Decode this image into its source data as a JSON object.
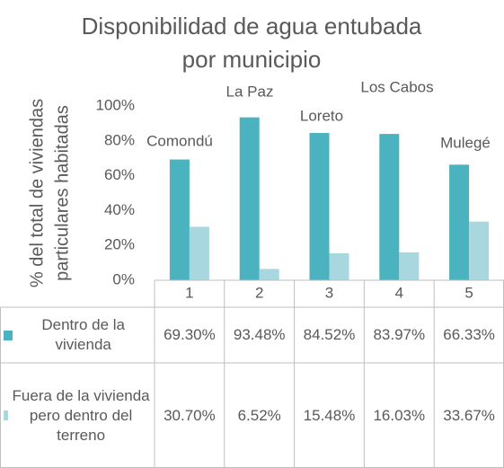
{
  "chart_data": {
    "type": "bar",
    "title": [
      "Disponibilidad de agua entubada",
      "por municipio"
    ],
    "y_label": [
      "% del total de viviendas",
      "particulares habitadas"
    ],
    "categories": [
      "1",
      "2",
      "3",
      "4",
      "5"
    ],
    "annotations": [
      "Comondú",
      "La Paz",
      "Loreto",
      "Los Cabos",
      "Mulegé"
    ],
    "series": [
      {
        "name": "Dentro de la vivienda",
        "color": "#4bb3bf",
        "values": [
          69.3,
          93.48,
          84.52,
          83.97,
          66.33
        ],
        "value_labels": [
          "69.30%",
          "93.48%",
          "84.52%",
          "83.97%",
          "66.33%"
        ]
      },
      {
        "name": "Fuera de la vivienda pero dentro del terreno",
        "color": "#a9d7df",
        "values": [
          30.7,
          6.52,
          15.48,
          16.03,
          33.67
        ],
        "value_labels": [
          "30.70%",
          "6.52%",
          "15.48%",
          "16.03%",
          "33.67%"
        ]
      }
    ],
    "ylim": [
      0,
      100
    ],
    "yticks": [
      {
        "value": 0,
        "label": "0%"
      },
      {
        "value": 20,
        "label": "20%"
      },
      {
        "value": 40,
        "label": "40%"
      },
      {
        "value": 60,
        "label": "60%"
      },
      {
        "value": 80,
        "label": "80%"
      },
      {
        "value": 100,
        "label": "100%"
      }
    ],
    "grid": false
  }
}
